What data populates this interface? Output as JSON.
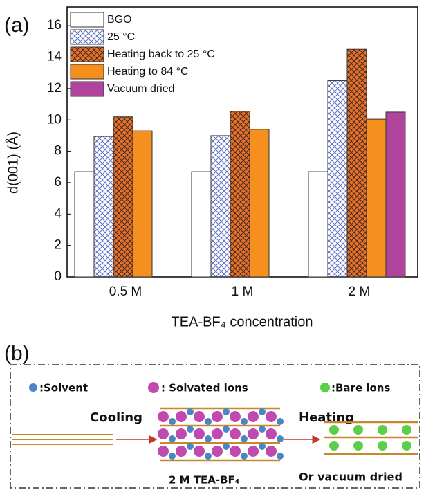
{
  "chart_data": {
    "type": "bar",
    "panel_label": "(a)",
    "y_label": "d(001) (Å)",
    "x_label": "TEA-BF₄ concentration",
    "categories": [
      "0.5 M",
      "1 M",
      "2 M"
    ],
    "series": [
      {
        "name": "BGO",
        "color": "#ffffff",
        "values": [
          6.7,
          6.7,
          6.7
        ]
      },
      {
        "name": "25 °C",
        "color": "#ffffff",
        "hatch": "#5a6fc0",
        "values": [
          8.95,
          9.0,
          12.5
        ]
      },
      {
        "name": "Heating back to 25 °C",
        "color": "#e8702a",
        "hatch": "#3a2a20",
        "values": [
          10.2,
          10.55,
          14.5
        ]
      },
      {
        "name": "Heating to 84 °C",
        "color": "#f5901e",
        "values": [
          9.3,
          9.4,
          10.05
        ]
      },
      {
        "name": "Vacuum dried",
        "color": "#b0449c",
        "values": [
          null,
          null,
          10.5
        ]
      }
    ],
    "ylim": [
      0,
      17.2
    ],
    "yticks": [
      0,
      2,
      4,
      6,
      8,
      10,
      12,
      14,
      16
    ],
    "legend": "upper-left"
  },
  "diagram": {
    "panel_label": "(b)",
    "legend": [
      ":Solvent",
      ": Solvated ions",
      ":Bare ions"
    ],
    "cooling": "Cooling",
    "heating": "Heating",
    "or_vacuum": "Or vacuum dried",
    "center_label": "2 M TEA-BF₄"
  }
}
